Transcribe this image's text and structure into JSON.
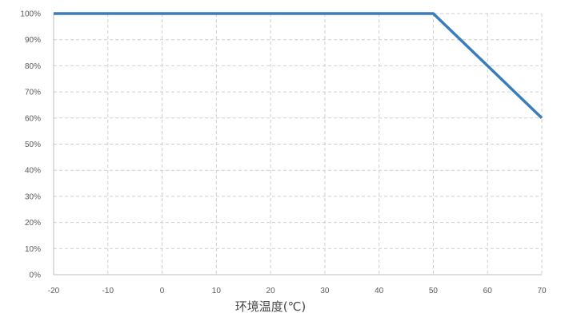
{
  "chart_data": {
    "type": "line",
    "title": "",
    "xlabel": "环境温度(℃)",
    "ylabel": "",
    "x_ticks": [
      -20,
      -10,
      0,
      10,
      20,
      30,
      40,
      50,
      60,
      70
    ],
    "y_ticks": [
      "0%",
      "10%",
      "20%",
      "30%",
      "40%",
      "50%",
      "60%",
      "70%",
      "80%",
      "90%",
      "100%"
    ],
    "xlim": [
      -20,
      70
    ],
    "ylim": [
      0,
      100
    ],
    "grid": true,
    "series": [
      {
        "color": "#3a7dbd",
        "x": [
          -20,
          50,
          70
        ],
        "y": [
          100,
          100,
          60
        ]
      }
    ]
  }
}
